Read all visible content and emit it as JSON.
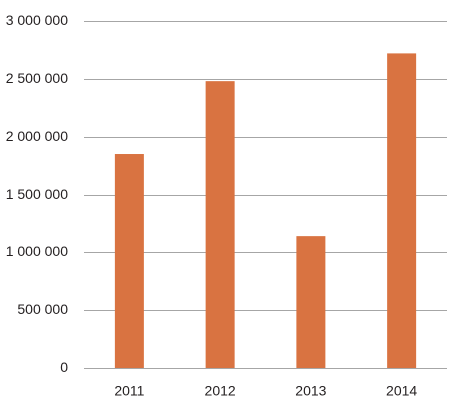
{
  "chart_data": {
    "type": "bar",
    "title": "",
    "xlabel": "",
    "ylabel": "",
    "categories": [
      "2011",
      "2012",
      "2013",
      "2014"
    ],
    "values": [
      1850000,
      2480000,
      1140000,
      2720000
    ],
    "ylim": [
      0,
      3000000
    ],
    "yticks": [
      0,
      500000,
      1000000,
      1500000,
      2000000,
      2500000,
      3000000
    ],
    "ytick_labels": [
      "0",
      "500 000",
      "1 000 000",
      "1 500 000",
      "2 000 000",
      "2 500 000",
      "3 000 000"
    ],
    "grid": true,
    "legend": "none",
    "bar_color": "#d97341",
    "grid_color": "#a6a6a6"
  }
}
